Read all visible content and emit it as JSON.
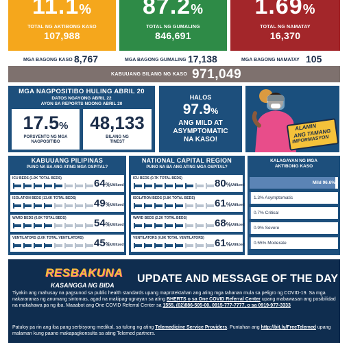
{
  "top_stats": {
    "active": {
      "big": "11.1",
      "big_unit": "%",
      "label": "TOTAL NG AKTIBONG KASO",
      "number": "107,988",
      "color": "#f5a71c"
    },
    "recovered": {
      "big": "87.2",
      "big_unit": "%",
      "label": "TOTAL NG GUMALING",
      "number": "846,691",
      "color": "#2e8b47"
    },
    "deaths": {
      "big": "1.69",
      "big_unit": "%",
      "label": "TOTAL NG NAMATAY",
      "number": "16,370",
      "color": "#a3262a"
    }
  },
  "new_cases": {
    "cases_label": "MGA BAGONG KASO",
    "cases_value": "8,767",
    "recoveries_label": "MGA BAGONG GUMALING",
    "recoveries_value": "17,138",
    "deaths_label": "MGA BAGONG NAMATAY",
    "deaths_value": "105"
  },
  "total_cases": {
    "label": "KABUUANG BILANG NG KASO",
    "value": "971,049"
  },
  "positives": {
    "heading": "MGA NAGPOSITIBO HULING ABRIL 20",
    "sub1": "DATOS NGAYONG ABRIL 22",
    "sub2": "AYON SA REPORTS NOONG ABRIL 20",
    "rate_value": "17.5",
    "rate_unit": "%",
    "rate_label_1": "PORSYENTO NG MGA",
    "rate_label_2": "NAGPOSITIBO",
    "tested_value": "48,133",
    "tested_label_1": "BILANG NG",
    "tested_label_2": "TINEST"
  },
  "asymptomatic": {
    "pre": "HALOS",
    "value": "97.9",
    "unit": "%",
    "line1": "ANG MILD AT",
    "line2": "ASYMPTOMATIC",
    "line3": "NA KASO!"
  },
  "campaign": {
    "line1": "ALAMIN",
    "line2": "ANG TAMANG",
    "line3": "IMPORMASYON"
  },
  "philippines": {
    "title": "KABUUANG PILIPINAS",
    "subtitle": "PUNO NA BA ANG ATING MGA OSPITAL?",
    "rows": [
      {
        "caption": "ICU BEDS (1.9K TOTAL BEDS)",
        "pct": "64",
        "unit": "%",
        "util": "Utilized",
        "fill": 0.64
      },
      {
        "caption": "ISOLATION BEDS (13.6K TOTAL BEDS)",
        "pct": "49",
        "unit": "%",
        "util": "Utilized",
        "fill": 0.49
      },
      {
        "caption": "WARD BEDS (6.0K TOTAL BEDS)",
        "pct": "54",
        "unit": "%",
        "util": "Utilized",
        "fill": 0.54
      },
      {
        "caption": "VENTILATORS (2.0K TOTAL VENTILATORS)",
        "pct": "45",
        "unit": "%",
        "util": "Utilized",
        "fill": 0.45
      }
    ]
  },
  "ncr": {
    "title": "NATIONAL CAPITAL REGION",
    "subtitle": "PUNO NA BA ANG ATING MGA OSPITAL?",
    "rows": [
      {
        "caption": "ICU BEDS (0.7K TOTAL BEDS)",
        "pct": "80",
        "unit": "%",
        "util": "Utilized",
        "fill": 0.8
      },
      {
        "caption": "ISOLATION BEDS (3.8K TOTAL BEDS)",
        "pct": "61",
        "unit": "%",
        "util": "Utilized",
        "fill": 0.61
      },
      {
        "caption": "WARD BEDS (2.2K TOTAL BEDS)",
        "pct": "68",
        "unit": "%",
        "util": "Utilized",
        "fill": 0.68
      },
      {
        "caption": "VENTILATORS (0.8K TOTAL VENTILATORS)",
        "pct": "61",
        "unit": "%",
        "util": "Utilized",
        "fill": 0.61
      }
    ]
  },
  "status": {
    "title_1": "KALAGAYAN NG MGA",
    "title_2": "AKTIBONG KASO",
    "items": [
      {
        "label": "Mild 96.6%",
        "fill": 0.966
      },
      {
        "label": "1.3% Asymptomatic",
        "fill": 0.013
      },
      {
        "label": "0.7% Critical",
        "fill": 0.007
      },
      {
        "label": "0.9% Severe",
        "fill": 0.009
      },
      {
        "label": "0.55% Moderate",
        "fill": 0.0055
      }
    ]
  },
  "update": {
    "logo_1": "RESBAKUNA",
    "logo_2": "KASANGGA NG BIDA",
    "heading": "UPDATE AND MESSAGE OF THE DAY",
    "p1_a": "Tiyakin ang mahusay na pagsunod sa public health standards upang maprotektahan ang ating mga tahanan mula sa peligro ng COVID-19. Sa mga nakararanas ng anumang sintomas, agad na makipag-ugnayan sa ating ",
    "p1_b": "BHERTS o sa One COVID Referral Center",
    "p1_c": " upang mabawasan ang posibilidad na makahawa pa ng iba. Maaabot ang One COVID Referral Center sa ",
    "p1_d": "1555, (02)886-505-00, 0915-777-7777, o sa 0919-977-3333",
    "p2_a": "Patuloy pa rin ang iba pang serbisyong medikal, sa tulong ng ating ",
    "p2_b": "Telemedicine Service Providers",
    "p2_c": ". Puntahan ang ",
    "p2_d": "http://bit.ly/FreeTelemed",
    "p2_e": " upang malaman kung paano makapagkonsulta sa ating Telemed partners."
  }
}
